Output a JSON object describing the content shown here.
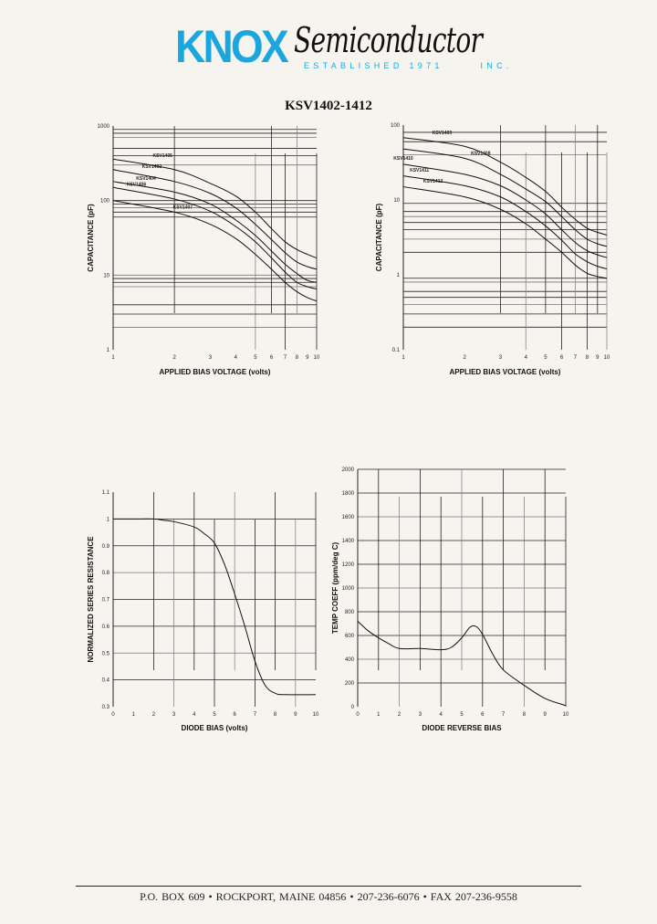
{
  "header": {
    "brand": "KNOX",
    "brand_script": "Semiconductor",
    "tagline": "ESTABLISHED 1971      INC.",
    "title": "KSV1402-1412",
    "brand_color": "#1ba7dd"
  },
  "footer": {
    "address": "P.O. BOX 609  •  ROCKPORT, MAINE 04856  •  207-236-6076  •  FAX  207-236-9558"
  },
  "chart_data": [
    {
      "type": "line",
      "xlabel": "APPLIED BIAS VOLTAGE (volts)",
      "ylabel": "CAPACITANCE (pF)",
      "xscale": "log",
      "yscale": "log",
      "xlim": [
        1,
        10
      ],
      "ylim": [
        1,
        1000
      ],
      "xticks": [
        "1",
        "2",
        "3",
        "4",
        "5",
        "6",
        "7",
        "8",
        "9",
        "10"
      ],
      "yticks": [
        "1",
        "10",
        "100",
        "1000"
      ],
      "x": [
        1,
        2,
        3,
        4,
        5,
        6,
        7,
        8,
        9,
        10
      ],
      "series": [
        {
          "name": "KSV1405",
          "values": [
            360,
            260,
            170,
            115,
            70,
            42,
            28,
            22,
            19,
            17
          ]
        },
        {
          "name": "KSV1402",
          "values": [
            260,
            180,
            125,
            80,
            48,
            30,
            20,
            15,
            13,
            12
          ]
        },
        {
          "name": "KSV1404",
          "values": [
            180,
            130,
            90,
            55,
            34,
            21,
            14,
            10.5,
            8.5,
            8
          ]
        },
        {
          "name": "KSV1406",
          "values": [
            150,
            105,
            72,
            45,
            28,
            17,
            11,
            8,
            7,
            6.5
          ]
        },
        {
          "name": "KSV1407",
          "values": [
            100,
            70,
            48,
            31,
            19,
            12,
            8,
            6,
            5,
            4.5
          ]
        }
      ]
    },
    {
      "type": "line",
      "xlabel": "APPLIED BIAS VOLTAGE (volts)",
      "ylabel": "CAPACITANCE (pF)",
      "xscale": "log",
      "yscale": "log",
      "xlim": [
        1,
        10
      ],
      "ylim": [
        0.1,
        100
      ],
      "xticks": [
        "1",
        "2",
        "3",
        "4",
        "5",
        "6",
        "7",
        "8",
        "9",
        "10"
      ],
      "yticks": [
        "0.1",
        "1",
        "10",
        "100"
      ],
      "x": [
        1,
        2,
        3,
        4,
        5,
        6,
        7,
        8,
        9,
        10
      ],
      "series": [
        {
          "name": "KSV1409",
          "values": [
            68,
            52,
            32,
            20,
            13,
            8,
            5.5,
            4.2,
            3.7,
            3.4
          ]
        },
        {
          "name": "KSV1408",
          "values": [
            48,
            36,
            22,
            14,
            9.5,
            6,
            4,
            3,
            2.6,
            2.4
          ]
        },
        {
          "name": "KSV1410",
          "values": [
            30,
            22,
            15.5,
            10,
            6.5,
            4,
            2.7,
            2.1,
            1.85,
            1.7
          ]
        },
        {
          "name": "KSV1411",
          "values": [
            21,
            15.5,
            11,
            7,
            4.5,
            2.9,
            1.9,
            1.5,
            1.3,
            1.2
          ]
        },
        {
          "name": "KSV1412",
          "values": [
            15,
            11,
            7.5,
            4.8,
            3,
            2,
            1.35,
            1.05,
            0.95,
            0.9
          ]
        }
      ]
    },
    {
      "type": "line",
      "xlabel": "DIODE BIAS (volts)",
      "ylabel": "NORMALIZED SERIES RESISTANCE",
      "xlim": [
        0,
        10
      ],
      "ylim": [
        0.3,
        1.1
      ],
      "xticks": [
        "0",
        "1",
        "2",
        "3",
        "4",
        "5",
        "6",
        "7",
        "8",
        "9",
        "10"
      ],
      "yticks": [
        "0.3",
        "0.4",
        "0.5",
        "0.6",
        "0.7",
        "0.8",
        "0.9",
        "1",
        "1.1"
      ],
      "x": [
        0,
        1,
        2,
        2.5,
        3,
        4,
        4.5,
        5,
        5.5,
        6,
        6.5,
        7,
        7.5,
        8,
        8.5,
        10
      ],
      "series": [
        {
          "values": [
            1.0,
            1.0,
            1.0,
            0.995,
            0.99,
            0.97,
            0.945,
            0.91,
            0.83,
            0.72,
            0.6,
            0.47,
            0.38,
            0.35,
            0.345,
            0.345
          ]
        }
      ]
    },
    {
      "type": "line",
      "xlabel": "DIODE REVERSE BIAS",
      "ylabel": "TEMP COEFF (ppm/deg C)",
      "xlim": [
        0,
        10
      ],
      "ylim": [
        0,
        2000
      ],
      "xticks": [
        "0",
        "1",
        "2",
        "3",
        "4",
        "5",
        "6",
        "7",
        "8",
        "9",
        "10"
      ],
      "yticks": [
        "0",
        "200",
        "400",
        "600",
        "800",
        "1000",
        "1200",
        "1400",
        "1600",
        "1800",
        "2000"
      ],
      "x": [
        0,
        0.5,
        1,
        1.5,
        2,
        3,
        4,
        4.5,
        5,
        5.4,
        5.7,
        6,
        6.5,
        7,
        8,
        9,
        10
      ],
      "series": [
        {
          "values": [
            720,
            640,
            580,
            530,
            490,
            490,
            480,
            500,
            580,
            670,
            675,
            610,
            440,
            310,
            180,
            70,
            10
          ]
        }
      ]
    }
  ]
}
